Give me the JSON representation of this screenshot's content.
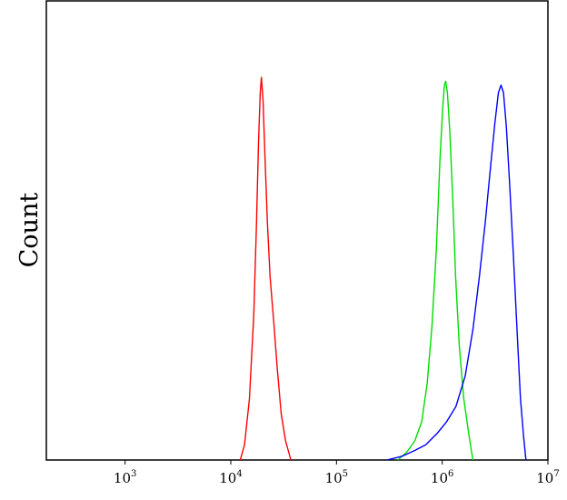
{
  "chart_data": {
    "type": "line",
    "title": "",
    "xlabel": "",
    "ylabel": "Count",
    "x_scale": "log",
    "xlim": [
      180,
      10000000
    ],
    "ylim": [
      0,
      1.2
    ],
    "grid": false,
    "legend": "none",
    "x_ticks": [
      {
        "value": 1000,
        "base": "10",
        "exp": "3"
      },
      {
        "value": 10000,
        "base": "10",
        "exp": "4"
      },
      {
        "value": 100000,
        "base": "10",
        "exp": "5"
      },
      {
        "value": 1000000,
        "base": "10",
        "exp": "6"
      },
      {
        "value": 10000000,
        "base": "10",
        "exp": "7"
      }
    ],
    "series": [
      {
        "color": "#ff0000",
        "points": [
          [
            12300,
            0
          ],
          [
            13500,
            0.04
          ],
          [
            15000,
            0.16
          ],
          [
            16500,
            0.38
          ],
          [
            17500,
            0.62
          ],
          [
            18300,
            0.83
          ],
          [
            19000,
            0.96
          ],
          [
            19500,
            1.0
          ],
          [
            20200,
            0.94
          ],
          [
            21000,
            0.8
          ],
          [
            22200,
            0.62
          ],
          [
            23500,
            0.48
          ],
          [
            25500,
            0.36
          ],
          [
            27500,
            0.24
          ],
          [
            30000,
            0.12
          ],
          [
            33000,
            0.05
          ],
          [
            37000,
            0
          ]
        ]
      },
      {
        "color": "#00dd00",
        "points": [
          [
            380000,
            0
          ],
          [
            460000,
            0.02
          ],
          [
            550000,
            0.05
          ],
          [
            640000,
            0.1
          ],
          [
            720000,
            0.2
          ],
          [
            800000,
            0.35
          ],
          [
            880000,
            0.55
          ],
          [
            950000,
            0.78
          ],
          [
            1010000,
            0.92
          ],
          [
            1050000,
            0.98
          ],
          [
            1080000,
            0.99
          ],
          [
            1120000,
            0.96
          ],
          [
            1180000,
            0.86
          ],
          [
            1260000,
            0.68
          ],
          [
            1340000,
            0.48
          ],
          [
            1450000,
            0.3
          ],
          [
            1600000,
            0.16
          ],
          [
            1780000,
            0.07
          ],
          [
            1950000,
            0
          ]
        ]
      },
      {
        "color": "#0000ff",
        "points": [
          [
            300000,
            0
          ],
          [
            420000,
            0.01
          ],
          [
            550000,
            0.025
          ],
          [
            700000,
            0.04
          ],
          [
            900000,
            0.07
          ],
          [
            1100000,
            0.1
          ],
          [
            1350000,
            0.14
          ],
          [
            1650000,
            0.22
          ],
          [
            1950000,
            0.34
          ],
          [
            2250000,
            0.48
          ],
          [
            2550000,
            0.62
          ],
          [
            2850000,
            0.76
          ],
          [
            3150000,
            0.88
          ],
          [
            3400000,
            0.96
          ],
          [
            3600000,
            0.98
          ],
          [
            3800000,
            0.96
          ],
          [
            4050000,
            0.87
          ],
          [
            4350000,
            0.72
          ],
          [
            4700000,
            0.54
          ],
          [
            5100000,
            0.34
          ],
          [
            5500000,
            0.16
          ],
          [
            5900000,
            0.06
          ],
          [
            6200000,
            0
          ]
        ]
      }
    ]
  }
}
